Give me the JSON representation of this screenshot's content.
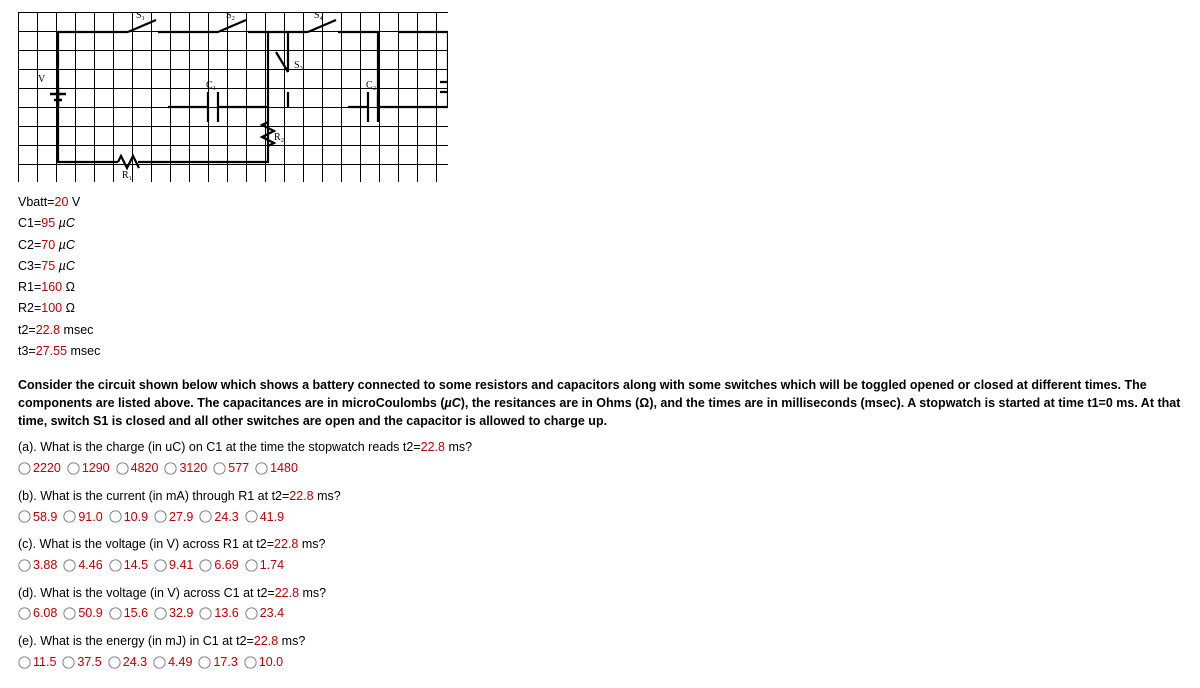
{
  "circuit_labels": {
    "switches": [
      "S₁",
      "S₂",
      "S₃",
      "S₄"
    ],
    "caps": [
      "C₁",
      "C₂",
      "C₃"
    ],
    "res": [
      "R₁",
      "R₂"
    ],
    "batt": "V"
  },
  "params": [
    {
      "key": "Vbatt=",
      "val": "20",
      "unit": "V",
      "italic": false
    },
    {
      "key": "C1=",
      "val": "95",
      "unit": "µC",
      "italic": true
    },
    {
      "key": "C2=",
      "val": "70",
      "unit": "µC",
      "italic": true
    },
    {
      "key": "C3=",
      "val": "75",
      "unit": "µC",
      "italic": true
    },
    {
      "key": "R1=",
      "val": "160",
      "unit": "Ω",
      "italic": false
    },
    {
      "key": "R2=",
      "val": "100",
      "unit": "Ω",
      "italic": false
    },
    {
      "key": "t2=",
      "val": "22.8",
      "unit": "msec",
      "italic": false
    },
    {
      "key": "t3=",
      "val": "27.55",
      "unit": "msec",
      "italic": false
    }
  ],
  "description_parts": [
    "Consider the circuit shown below which shows a battery connected to some resistors and capacitors along with some switches which will be toggled opened or closed at different times. The components are listed above. The capacitances are in microCoulombs (",
    "µC",
    "), the resitances are in Ohms (",
    "Ω",
    "), and the times are in milliseconds (msec). A stopwatch is started at time t1=0 ms. At that time, switch S1 is closed and all other switches are open and the capacitor is allowed to charge up."
  ],
  "questions": [
    {
      "label": "(a). What is the charge (in uC) on C1 at the time the stopwatch reads t2=",
      "tval": "22.8",
      "tail": " ms?",
      "options": [
        "2220",
        "1290",
        "4820",
        "3120",
        "577",
        "1480"
      ]
    },
    {
      "label": "(b). What is the current (in mA) through R1 at t2=",
      "tval": "22.8",
      "tail": " ms?",
      "options": [
        "58.9",
        "91.0",
        "10.9",
        "27.9",
        "24.3",
        "41.9"
      ]
    },
    {
      "label": "(c). What is the voltage (in V) across R1 at t2=",
      "tval": "22.8",
      "tail": " ms?",
      "options": [
        "3.88",
        "4.46",
        "14.5",
        "9.41",
        "6.69",
        "1.74"
      ]
    },
    {
      "label": "(d). What is the voltage (in V) across C1 at t2=",
      "tval": "22.8",
      "tail": " ms?",
      "options": [
        "6.08",
        "50.9",
        "15.6",
        "32.9",
        "13.6",
        "23.4"
      ]
    },
    {
      "label": "(e). What is the energy (in mJ) in C1 at t2=",
      "tval": "22.8",
      "tail": " ms?",
      "options": [
        "11.5",
        "37.5",
        "24.3",
        "4.49",
        "17.3",
        "10.0"
      ]
    }
  ],
  "colors": {
    "accent": "#c00000"
  }
}
